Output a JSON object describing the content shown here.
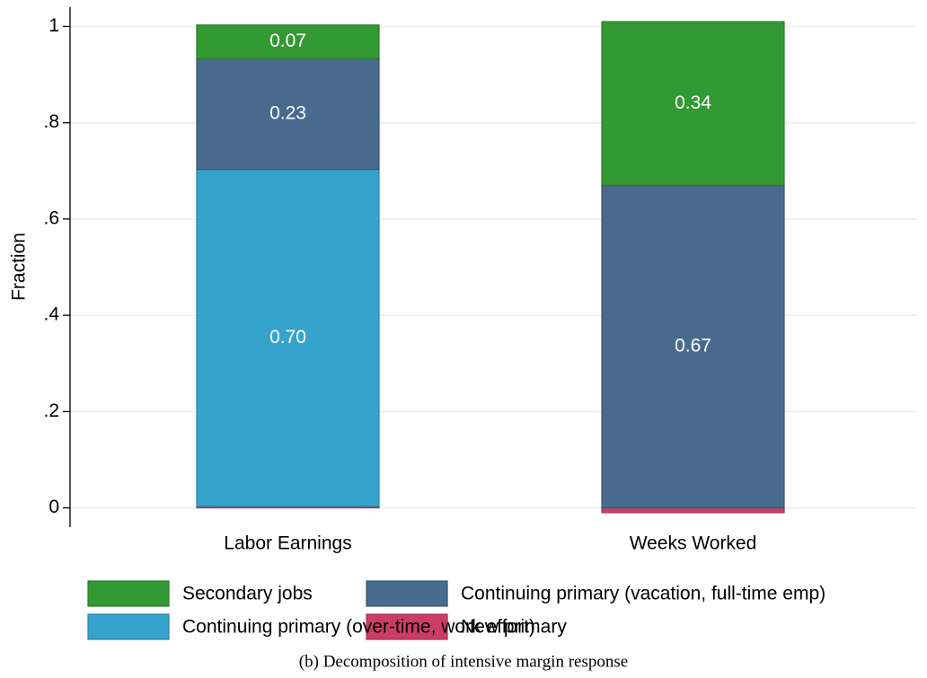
{
  "chart_data": {
    "type": "stacked_bar",
    "caption": "(b) Decomposition of intensive margin response",
    "ylabel": "Fraction",
    "categories": [
      "Labor Earnings",
      "Weeks Worked"
    ],
    "series": [
      {
        "name": "New primary",
        "color": "#cc3d66",
        "values": [
          0.003,
          -0.01
        ],
        "value_labels": [
          null,
          null
        ]
      },
      {
        "name": "Continuing primary (over-time, work effort)",
        "color": "#36a3cc",
        "values": [
          0.7,
          0
        ],
        "value_labels": [
          "0.70",
          null
        ]
      },
      {
        "name": "Continuing primary (vacation, full-time emp)",
        "color": "#486a8c",
        "values": [
          0.23,
          0.67
        ],
        "value_labels": [
          "0.23",
          "0.67"
        ]
      },
      {
        "name": "Secondary jobs",
        "color": "#339933",
        "values": [
          0.07,
          0.34
        ],
        "value_labels": [
          "0.07",
          "0.34"
        ]
      }
    ],
    "ylim": [
      -0.04,
      1.04
    ],
    "yticks": [
      0,
      {
        "value": 0.2,
        "label": ".2"
      },
      {
        "value": 0.4,
        "label": ".4"
      },
      {
        "value": 0.6,
        "label": ".6"
      },
      {
        "value": 0.8,
        "label": ".8"
      },
      1
    ],
    "grid": true
  }
}
